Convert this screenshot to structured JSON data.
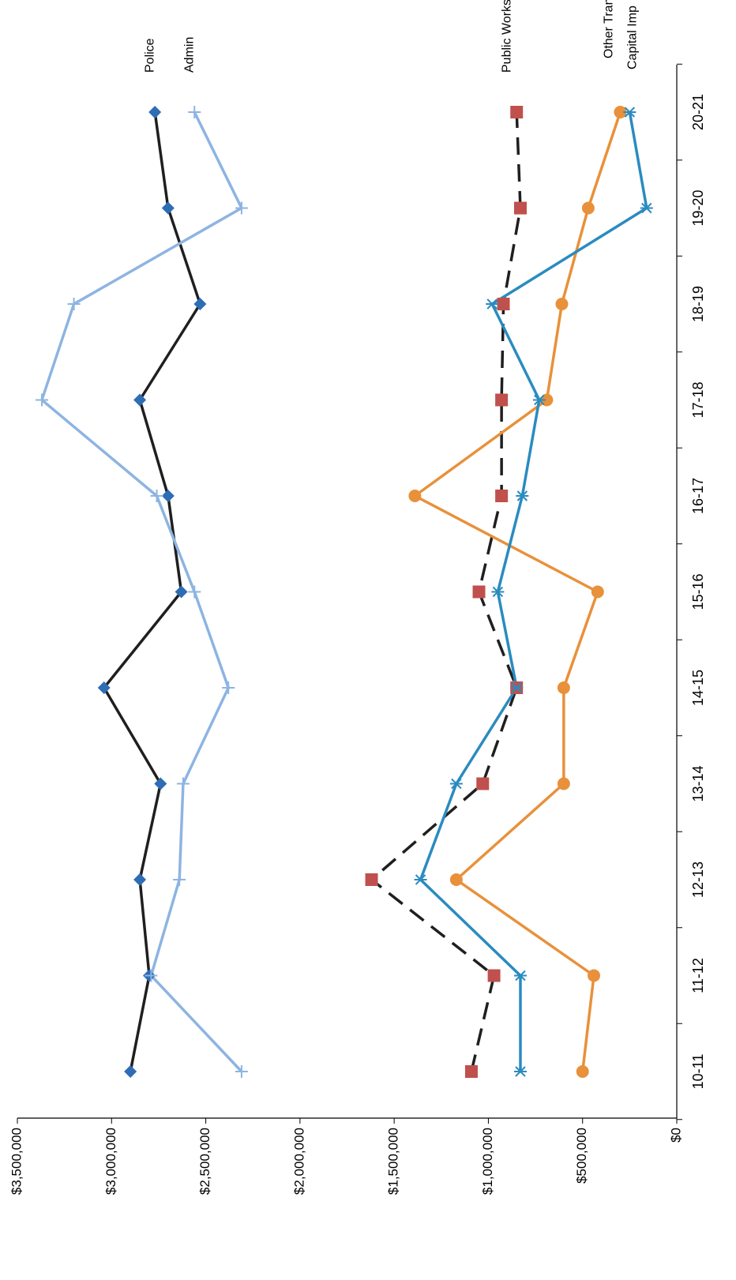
{
  "chart_data": {
    "type": "line",
    "orientation": "rotated-90-clockwise",
    "categories": [
      "10-11",
      "11-12",
      "12-13",
      "13-14",
      "14-15",
      "15-16",
      "16-17",
      "17-18",
      "18-19",
      "19-20",
      "20-21"
    ],
    "y_ticks": [
      0,
      500000,
      1000000,
      1500000,
      2000000,
      2500000,
      3000000,
      3500000
    ],
    "y_tick_labels": [
      "$0",
      "$500,000",
      "$1,000,000",
      "$1,500,000",
      "$2,000,000",
      "$2,500,000",
      "$3,000,000",
      "$3,500,000"
    ],
    "ylim": [
      0,
      3500000
    ],
    "grid": false,
    "legend": "inline-labels-at-end",
    "series": [
      {
        "name": "Police",
        "color": "#1f1f1f",
        "marker": "diamond",
        "marker_color": "#2e6db4",
        "dash": "solid",
        "values": [
          2900000,
          2800000,
          2850000,
          2740000,
          3040000,
          2630000,
          2700000,
          2850000,
          2530000,
          2700000,
          2770000
        ]
      },
      {
        "name": "Admin",
        "color": "#8db4e2",
        "marker": "plus",
        "marker_color": "#8db4e2",
        "dash": "solid",
        "values": [
          2310000,
          2790000,
          2640000,
          2620000,
          2380000,
          2560000,
          2760000,
          3370000,
          3200000,
          2310000,
          2560000
        ]
      },
      {
        "name": "Public Works",
        "color": "#1f1f1f",
        "marker": "square",
        "marker_color": "#c0504d",
        "dash": "dashed",
        "values": [
          1090000,
          970000,
          1620000,
          1030000,
          850000,
          1050000,
          930000,
          930000,
          920000,
          830000,
          850000
        ]
      },
      {
        "name": "Other Transfers",
        "color": "#e8913a",
        "marker": "circle",
        "marker_color": "#e8913a",
        "dash": "solid",
        "values": [
          500000,
          440000,
          1170000,
          600000,
          600000,
          420000,
          1390000,
          690000,
          610000,
          470000,
          300000
        ]
      },
      {
        "name": "Capital Imp",
        "color": "#2a8bc0",
        "marker": "star",
        "marker_color": "#2a8bc0",
        "dash": "solid",
        "values": [
          830000,
          830000,
          1360000,
          1170000,
          850000,
          950000,
          820000,
          730000,
          980000,
          160000,
          250000
        ]
      }
    ]
  }
}
